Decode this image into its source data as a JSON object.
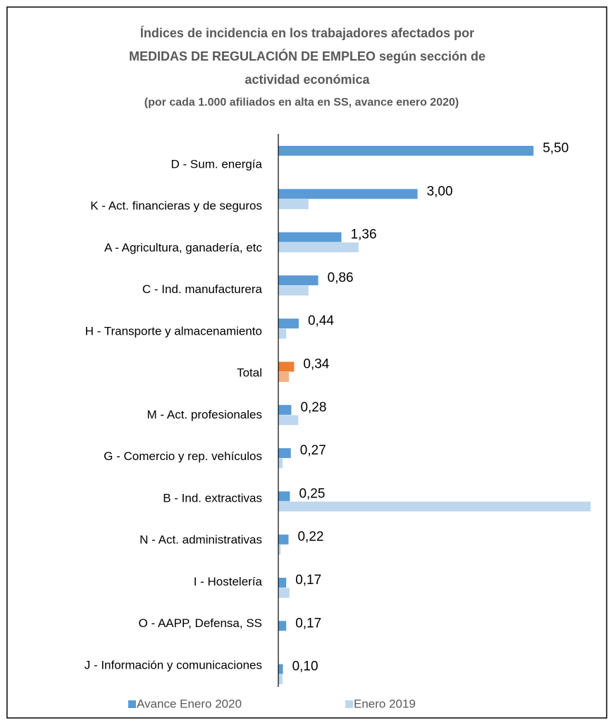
{
  "chart_data": {
    "type": "hbar",
    "title": [
      "Índices de incidencia en los trabajadores afectados por",
      "MEDIDAS DE REGULACIÓN DE EMPLEO según sección de",
      "actividad económica"
    ],
    "subtitle": "(por cada 1.000 afiliados en alta en SS, avance enero 2020)",
    "categories": [
      "D - Sum. energía",
      "K - Act. financieras y de seguros",
      "A - Agricultura, ganadería, etc",
      "C - Ind. manufacturera",
      "H - Transporte y almacenamiento",
      "Total",
      "M - Act. profesionales",
      "G - Comercio y rep. vehículos",
      "B - Ind. extractivas",
      "N - Act. administrativas",
      "I - Hostelería",
      "O - AAPP, Defensa, SS",
      "J - Información y comunicaciones"
    ],
    "highlight": "Total",
    "series": [
      {
        "name": "Avance Enero 2020",
        "color": "#5b9bd5",
        "highlight_color": "#ed7d31",
        "values": [
          5.5,
          3.0,
          1.36,
          0.86,
          0.44,
          0.34,
          0.28,
          0.27,
          0.25,
          0.22,
          0.17,
          0.17,
          0.1
        ],
        "value_labels": [
          "5,50",
          "3,00",
          "1,36",
          "0,86",
          "0,44",
          "0,34",
          "0,28",
          "0,27",
          "0,25",
          "0,22",
          "0,17",
          "0,17",
          "0,10"
        ]
      },
      {
        "name": "Enero 2019",
        "color": "#bdd7ee",
        "highlight_color": "#f4b183",
        "values": [
          null,
          0.65,
          1.73,
          0.65,
          0.17,
          0.23,
          0.43,
          0.09,
          6.73,
          0.05,
          0.24,
          null,
          0.09
        ]
      }
    ],
    "xlim": [
      0,
      7
    ]
  }
}
